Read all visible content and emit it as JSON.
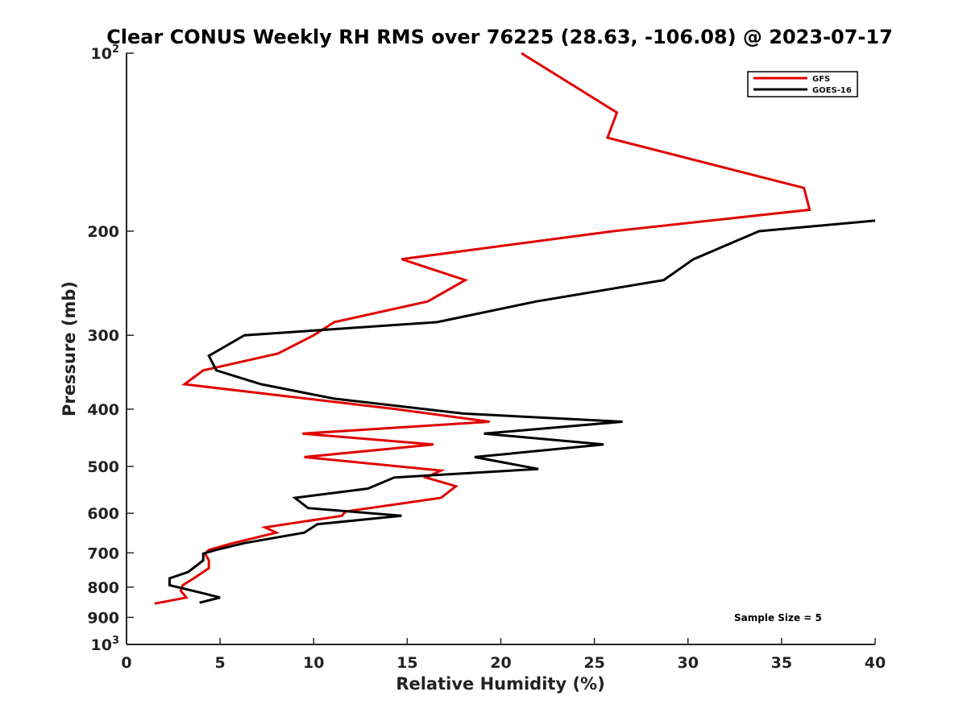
{
  "chart_data": {
    "type": "line",
    "title": "Clear CONUS Weekly RH RMS over 76225 (28.63, -106.08) @ 2023-07-17",
    "xlabel": "Relative Humidity (%)",
    "ylabel": "Pressure (mb)",
    "xlim": [
      0,
      40
    ],
    "ylim": [
      100,
      1000
    ],
    "y_scale": "log",
    "y_inverted": true,
    "x_ticks": [
      0,
      5,
      10,
      15,
      20,
      25,
      30,
      35,
      40
    ],
    "y_ticks": [
      {
        "value": 100,
        "label": "10",
        "sup": "2"
      },
      {
        "value": 200,
        "label": "200",
        "sup": ""
      },
      {
        "value": 300,
        "label": "300",
        "sup": ""
      },
      {
        "value": 400,
        "label": "400",
        "sup": ""
      },
      {
        "value": 500,
        "label": "500",
        "sup": ""
      },
      {
        "value": 600,
        "label": "600",
        "sup": ""
      },
      {
        "value": 700,
        "label": "700",
        "sup": ""
      },
      {
        "value": 800,
        "label": "800",
        "sup": ""
      },
      {
        "value": 900,
        "label": "900",
        "sup": ""
      },
      {
        "value": 1000,
        "label": "10",
        "sup": "3"
      }
    ],
    "grid": false,
    "legend_position": "top-right",
    "series": [
      {
        "name": "GFS",
        "color": "#e00000",
        "points": [
          [
            21.1,
            100
          ],
          [
            26.2,
            126
          ],
          [
            25.7,
            139
          ],
          [
            36.2,
            169
          ],
          [
            36.5,
            184
          ],
          [
            26.0,
            200
          ],
          [
            14.7,
            223
          ],
          [
            18.1,
            242
          ],
          [
            16.1,
            263
          ],
          [
            11.1,
            285
          ],
          [
            10.0,
            300
          ],
          [
            8.1,
            322
          ],
          [
            4.1,
            344
          ],
          [
            3.1,
            363
          ],
          [
            14.4,
            400
          ],
          [
            19.4,
            420
          ],
          [
            9.4,
            440
          ],
          [
            16.4,
            459
          ],
          [
            9.5,
            482
          ],
          [
            16.8,
            508
          ],
          [
            16.0,
            522
          ],
          [
            17.6,
            540
          ],
          [
            16.8,
            565
          ],
          [
            11.7,
            596
          ],
          [
            11.5,
            606
          ],
          [
            7.4,
            634
          ],
          [
            8.0,
            647
          ],
          [
            5.7,
            674
          ],
          [
            4.4,
            692
          ],
          [
            4.2,
            702
          ],
          [
            4.4,
            721
          ],
          [
            4.4,
            743
          ],
          [
            3.6,
            773
          ],
          [
            3.0,
            794
          ],
          [
            2.9,
            812
          ],
          [
            3.2,
            833
          ],
          [
            1.5,
            853
          ]
        ]
      },
      {
        "name": "GOES-16",
        "color": "#000000",
        "points": [
          [
            40.0,
            192
          ],
          [
            33.8,
            200
          ],
          [
            30.3,
            223
          ],
          [
            28.7,
            242
          ],
          [
            21.9,
            263
          ],
          [
            16.6,
            285
          ],
          [
            6.3,
            300
          ],
          [
            4.4,
            325
          ],
          [
            4.8,
            344
          ],
          [
            7.2,
            363
          ],
          [
            11.1,
            384
          ],
          [
            18.0,
            407
          ],
          [
            26.5,
            420
          ],
          [
            19.1,
            440
          ],
          [
            25.5,
            459
          ],
          [
            18.6,
            482
          ],
          [
            22.0,
            505
          ],
          [
            14.3,
            522
          ],
          [
            12.9,
            545
          ],
          [
            9.0,
            565
          ],
          [
            9.7,
            588
          ],
          [
            14.7,
            606
          ],
          [
            10.2,
            626
          ],
          [
            9.5,
            647
          ],
          [
            6.3,
            674
          ],
          [
            4.8,
            692
          ],
          [
            4.1,
            702
          ],
          [
            4.1,
            721
          ],
          [
            3.8,
            733
          ],
          [
            3.3,
            754
          ],
          [
            2.3,
            773
          ],
          [
            2.3,
            794
          ],
          [
            4.2,
            821
          ],
          [
            5.0,
            833
          ],
          [
            3.9,
            850
          ]
        ]
      }
    ],
    "annotation": "Sample Size = 5"
  }
}
